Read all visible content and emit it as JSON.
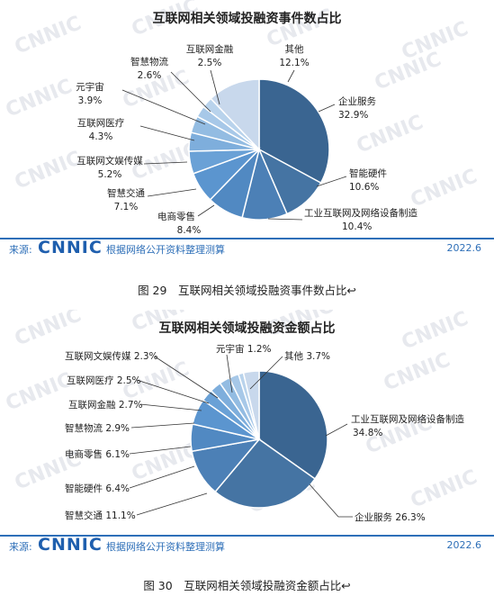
{
  "watermark": "CNNIC",
  "chart_data": [
    {
      "type": "pie",
      "title": "互联网相关领域投融资事件数占比",
      "caption": "图 29　互联网相关领域投融资事件数占比↩",
      "footer": {
        "source_prefix": "来源:",
        "logo": "CNNIC",
        "source_note": "根据网络公开资料整理测算",
        "date": "2022.6"
      },
      "slices": [
        {
          "name": "企业服务",
          "value": 32.9,
          "label": "32.9%",
          "color": "#3a6591"
        },
        {
          "name": "智能硬件",
          "value": 10.6,
          "label": "10.6%",
          "color": "#4574a3"
        },
        {
          "name": "工业互联网及网络设备制造",
          "value": 10.4,
          "label": "10.4%",
          "color": "#4c80b6"
        },
        {
          "name": "电商零售",
          "value": 8.4,
          "label": "8.4%",
          "color": "#5189c2"
        },
        {
          "name": "智慧交通",
          "value": 7.1,
          "label": "7.1%",
          "color": "#5b95cf"
        },
        {
          "name": "互联网文娱传媒",
          "value": 5.2,
          "label": "5.2%",
          "color": "#6aa1d6"
        },
        {
          "name": "互联网医疗",
          "value": 4.3,
          "label": "4.3%",
          "color": "#7eaedc"
        },
        {
          "name": "元宇宙",
          "value": 3.9,
          "label": "3.9%",
          "color": "#93bce2"
        },
        {
          "name": "智慧物流",
          "value": 2.6,
          "label": "2.6%",
          "color": "#a7c8e8"
        },
        {
          "name": "互联网金融",
          "value": 2.5,
          "label": "2.5%",
          "color": "#b9d3ec"
        },
        {
          "name": "其他",
          "value": 12.1,
          "label": "12.1%",
          "color": "#c8d8ec"
        }
      ]
    },
    {
      "type": "pie",
      "title": "互联网相关领域投融资金额占比",
      "caption": "图 30　互联网相关领域投融资金额占比↩",
      "footer": {
        "source_prefix": "来源:",
        "logo": "CNNIC",
        "source_note": "根据网络公开资料整理测算",
        "date": "2022.6"
      },
      "slices": [
        {
          "name": "工业互联网及网络设备制造",
          "value": 34.8,
          "label": "34.8%",
          "color": "#3a6591"
        },
        {
          "name": "企业服务",
          "value": 26.3,
          "label": "26.3%",
          "color": "#4574a3"
        },
        {
          "name": "智慧交通",
          "value": 11.1,
          "label": "11.1%",
          "color": "#4c80b6"
        },
        {
          "name": "智能硬件",
          "value": 6.4,
          "label": "6.4%",
          "color": "#5189c2"
        },
        {
          "name": "电商零售",
          "value": 6.1,
          "label": "6.1%",
          "color": "#5b95cf"
        },
        {
          "name": "智慧物流",
          "value": 2.9,
          "label": "2.9%",
          "color": "#6aa1d6"
        },
        {
          "name": "互联网金融",
          "value": 2.7,
          "label": "2.7%",
          "color": "#7eaedc"
        },
        {
          "name": "互联网医疗",
          "value": 2.5,
          "label": "2.5%",
          "color": "#93bce2"
        },
        {
          "name": "互联网文娱传媒",
          "value": 2.3,
          "label": "2.3%",
          "color": "#a7c8e8"
        },
        {
          "name": "元宇宙",
          "value": 1.2,
          "label": "1.2%",
          "color": "#b9d3ec"
        },
        {
          "name": "其他",
          "value": 3.7,
          "label": "3.7%",
          "color": "#c8d8ec"
        }
      ]
    }
  ]
}
